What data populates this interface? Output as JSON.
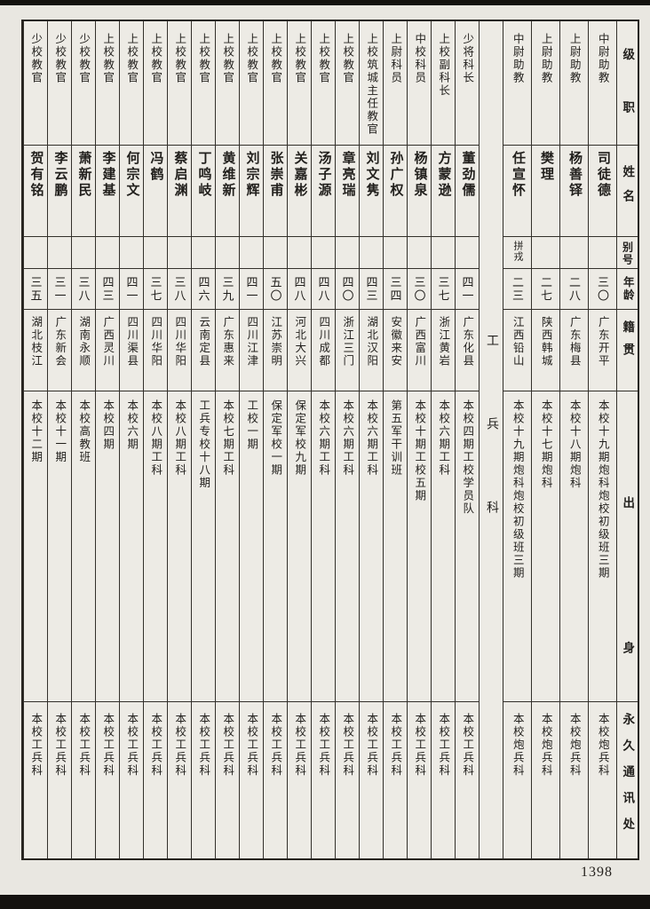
{
  "document": {
    "page_number": "1398"
  },
  "table": {
    "headers": {
      "rank": "级职",
      "name": "姓名",
      "alias": "别号",
      "age": "年龄",
      "native_place": "籍贯",
      "background": "出身",
      "address": "永久通讯处"
    },
    "section_separator": {
      "label": "工兵科"
    },
    "artillery_group_columns": [
      {
        "rank": "中尉助教",
        "name": "司徒德",
        "alias": "",
        "age": "三〇",
        "native_place": "广东开平",
        "background": "本校十九期炮科炮校初级班三期",
        "address": "本校炮兵科"
      },
      {
        "rank": "上尉助教",
        "name": "杨善铎",
        "alias": "",
        "age": "二八",
        "native_place": "广东梅县",
        "background": "本校十八期炮科",
        "address": "本校炮兵科"
      },
      {
        "rank": "上尉助教",
        "name": "樊理",
        "alias": "",
        "age": "二七",
        "native_place": "陕西韩城",
        "background": "本校十七期炮科",
        "address": "本校炮兵科"
      },
      {
        "rank": "中尉助教",
        "name": "任宣怀",
        "alias": "拼戎",
        "age": "二三",
        "native_place": "江西铅山",
        "background": "本校十九期炮科炮校初级班三期",
        "address": "本校炮兵科"
      }
    ],
    "engineer_group_columns": [
      {
        "rank": "少将科长",
        "name": "董劲儒",
        "alias": "",
        "age": "四一",
        "native_place": "广东化县",
        "background": "本校四期工校学员队",
        "address": "本校工兵科"
      },
      {
        "rank": "上校副科长",
        "name": "方蒙逊",
        "alias": "",
        "age": "三七",
        "native_place": "浙江黄岩",
        "background": "本校六期工科",
        "address": "本校工兵科"
      },
      {
        "rank": "中校科员",
        "name": "杨镇泉",
        "alias": "",
        "age": "三〇",
        "native_place": "广西富川",
        "background": "本校十期工校五期",
        "address": "本校工兵科"
      },
      {
        "rank": "上尉科员",
        "name": "孙广权",
        "alias": "",
        "age": "三四",
        "native_place": "安徽来安",
        "background": "第五军干训班",
        "address": "本校工兵科"
      },
      {
        "rank": "上校筑城主任教官",
        "name": "刘文隽",
        "alias": "",
        "age": "四三",
        "native_place": "湖北汉阳",
        "background": "本校六期工科",
        "address": "本校工兵科"
      },
      {
        "rank": "上校教官",
        "name": "章亮瑞",
        "alias": "",
        "age": "四〇",
        "native_place": "浙江三门",
        "background": "本校六期工科",
        "address": "本校工兵科"
      },
      {
        "rank": "上校教官",
        "name": "汤子源",
        "alias": "",
        "age": "四八",
        "native_place": "四川成都",
        "background": "本校六期工科",
        "address": "本校工兵科"
      },
      {
        "rank": "上校教官",
        "name": "关嘉彬",
        "alias": "",
        "age": "四八",
        "native_place": "河北大兴",
        "background": "保定军校九期",
        "address": "本校工兵科"
      },
      {
        "rank": "上校教官",
        "name": "张崇甫",
        "alias": "",
        "age": "五〇",
        "native_place": "江苏崇明",
        "background": "保定军校一期",
        "address": "本校工兵科"
      },
      {
        "rank": "上校教官",
        "name": "刘宗辉",
        "alias": "",
        "age": "四一",
        "native_place": "四川江津",
        "background": "工校一期",
        "address": "本校工兵科"
      },
      {
        "rank": "上校教官",
        "name": "黄维新",
        "alias": "",
        "age": "三九",
        "native_place": "广东惠来",
        "background": "本校七期工科",
        "address": "本校工兵科"
      },
      {
        "rank": "上校教官",
        "name": "丁鸣岐",
        "alias": "",
        "age": "四六",
        "native_place": "云南定县",
        "background": "工兵专校十八期",
        "address": "本校工兵科"
      },
      {
        "rank": "上校教官",
        "name": "蔡启渊",
        "alias": "",
        "age": "三八",
        "native_place": "四川华阳",
        "background": "本校八期工科",
        "address": "本校工兵科"
      },
      {
        "rank": "上校教官",
        "name": "冯鹤",
        "alias": "",
        "age": "三七",
        "native_place": "四川华阳",
        "background": "本校八期工科",
        "address": "本校工兵科"
      },
      {
        "rank": "上校教官",
        "name": "何宗文",
        "alias": "",
        "age": "四一",
        "native_place": "四川渠县",
        "background": "本校六期",
        "address": "本校工兵科"
      },
      {
        "rank": "上校教官",
        "name": "李建基",
        "alias": "",
        "age": "四三",
        "native_place": "广西灵川",
        "background": "本校四期",
        "address": "本校工兵科"
      },
      {
        "rank": "少校教官",
        "name": "萧新民",
        "alias": "",
        "age": "三八",
        "native_place": "湖南永顺",
        "background": "本校高教班",
        "address": "本校工兵科"
      },
      {
        "rank": "少校教官",
        "name": "李云鹏",
        "alias": "",
        "age": "三一",
        "native_place": "广东新会",
        "background": "本校十一期",
        "address": "本校工兵科"
      },
      {
        "rank": "少校教官",
        "name": "贺有铭",
        "alias": "",
        "age": "三五",
        "native_place": "湖北枝江",
        "background": "本校十二期",
        "address": "本校工兵科"
      }
    ]
  }
}
